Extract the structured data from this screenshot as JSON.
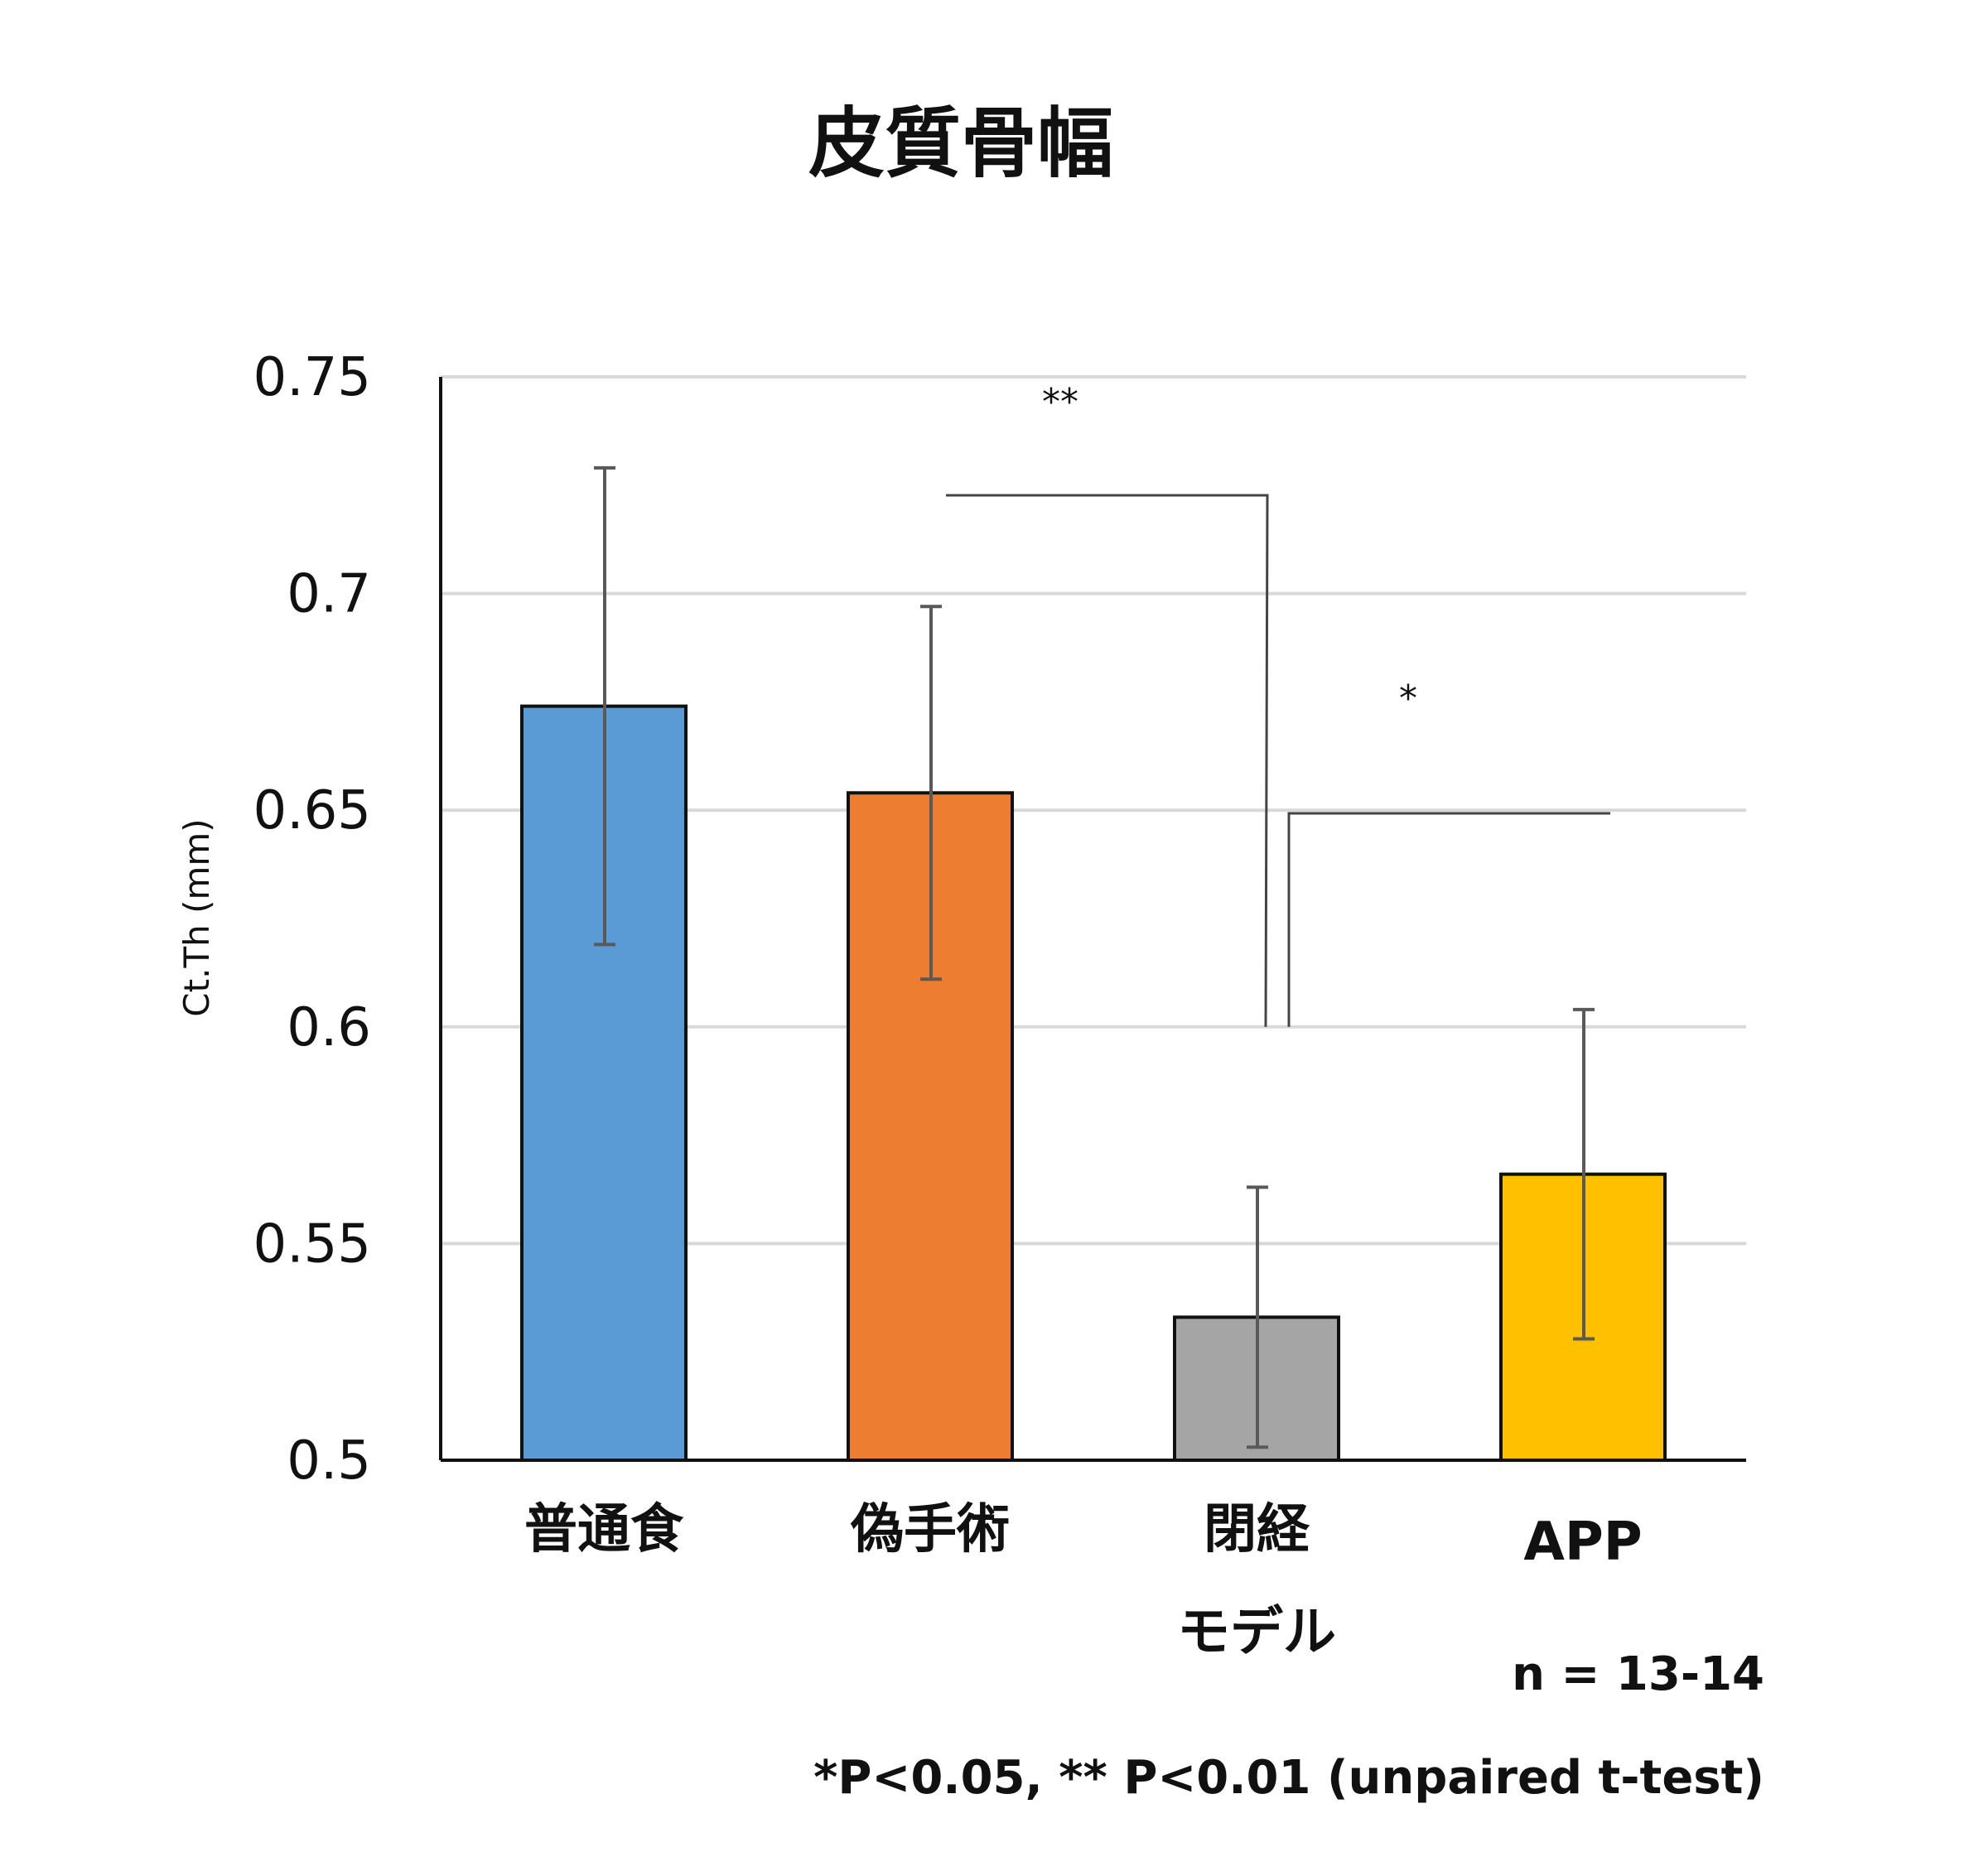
{
  "chart_data": {
    "type": "bar",
    "title": "皮質骨幅",
    "ylabel": "Ct.Th (mm)",
    "xlabel": "",
    "ylim": [
      0.5,
      0.75
    ],
    "yticks": [
      "0.5",
      "0.55",
      "0.6",
      "0.65",
      "0.7",
      "0.75"
    ],
    "grid": true,
    "categories": [
      "普通食",
      "偽手術",
      "閉経\nモデル",
      "APP"
    ],
    "values": [
      0.674,
      0.654,
      0.533,
      0.566
    ],
    "errors": [
      0.055,
      0.043,
      0.03,
      0.038
    ],
    "colors": [
      "#5b9bd5",
      "#ed7d31",
      "#a5a5a5",
      "#ffc000"
    ],
    "significance": [
      {
        "from": 1,
        "to": 2,
        "label": "**"
      },
      {
        "from": 2,
        "to": 3,
        "label": "*"
      }
    ],
    "annotations": {
      "n": "n = 13-14",
      "pvalues": "*P<0.05, ** P<0.01 (unpaired t-test)"
    }
  }
}
